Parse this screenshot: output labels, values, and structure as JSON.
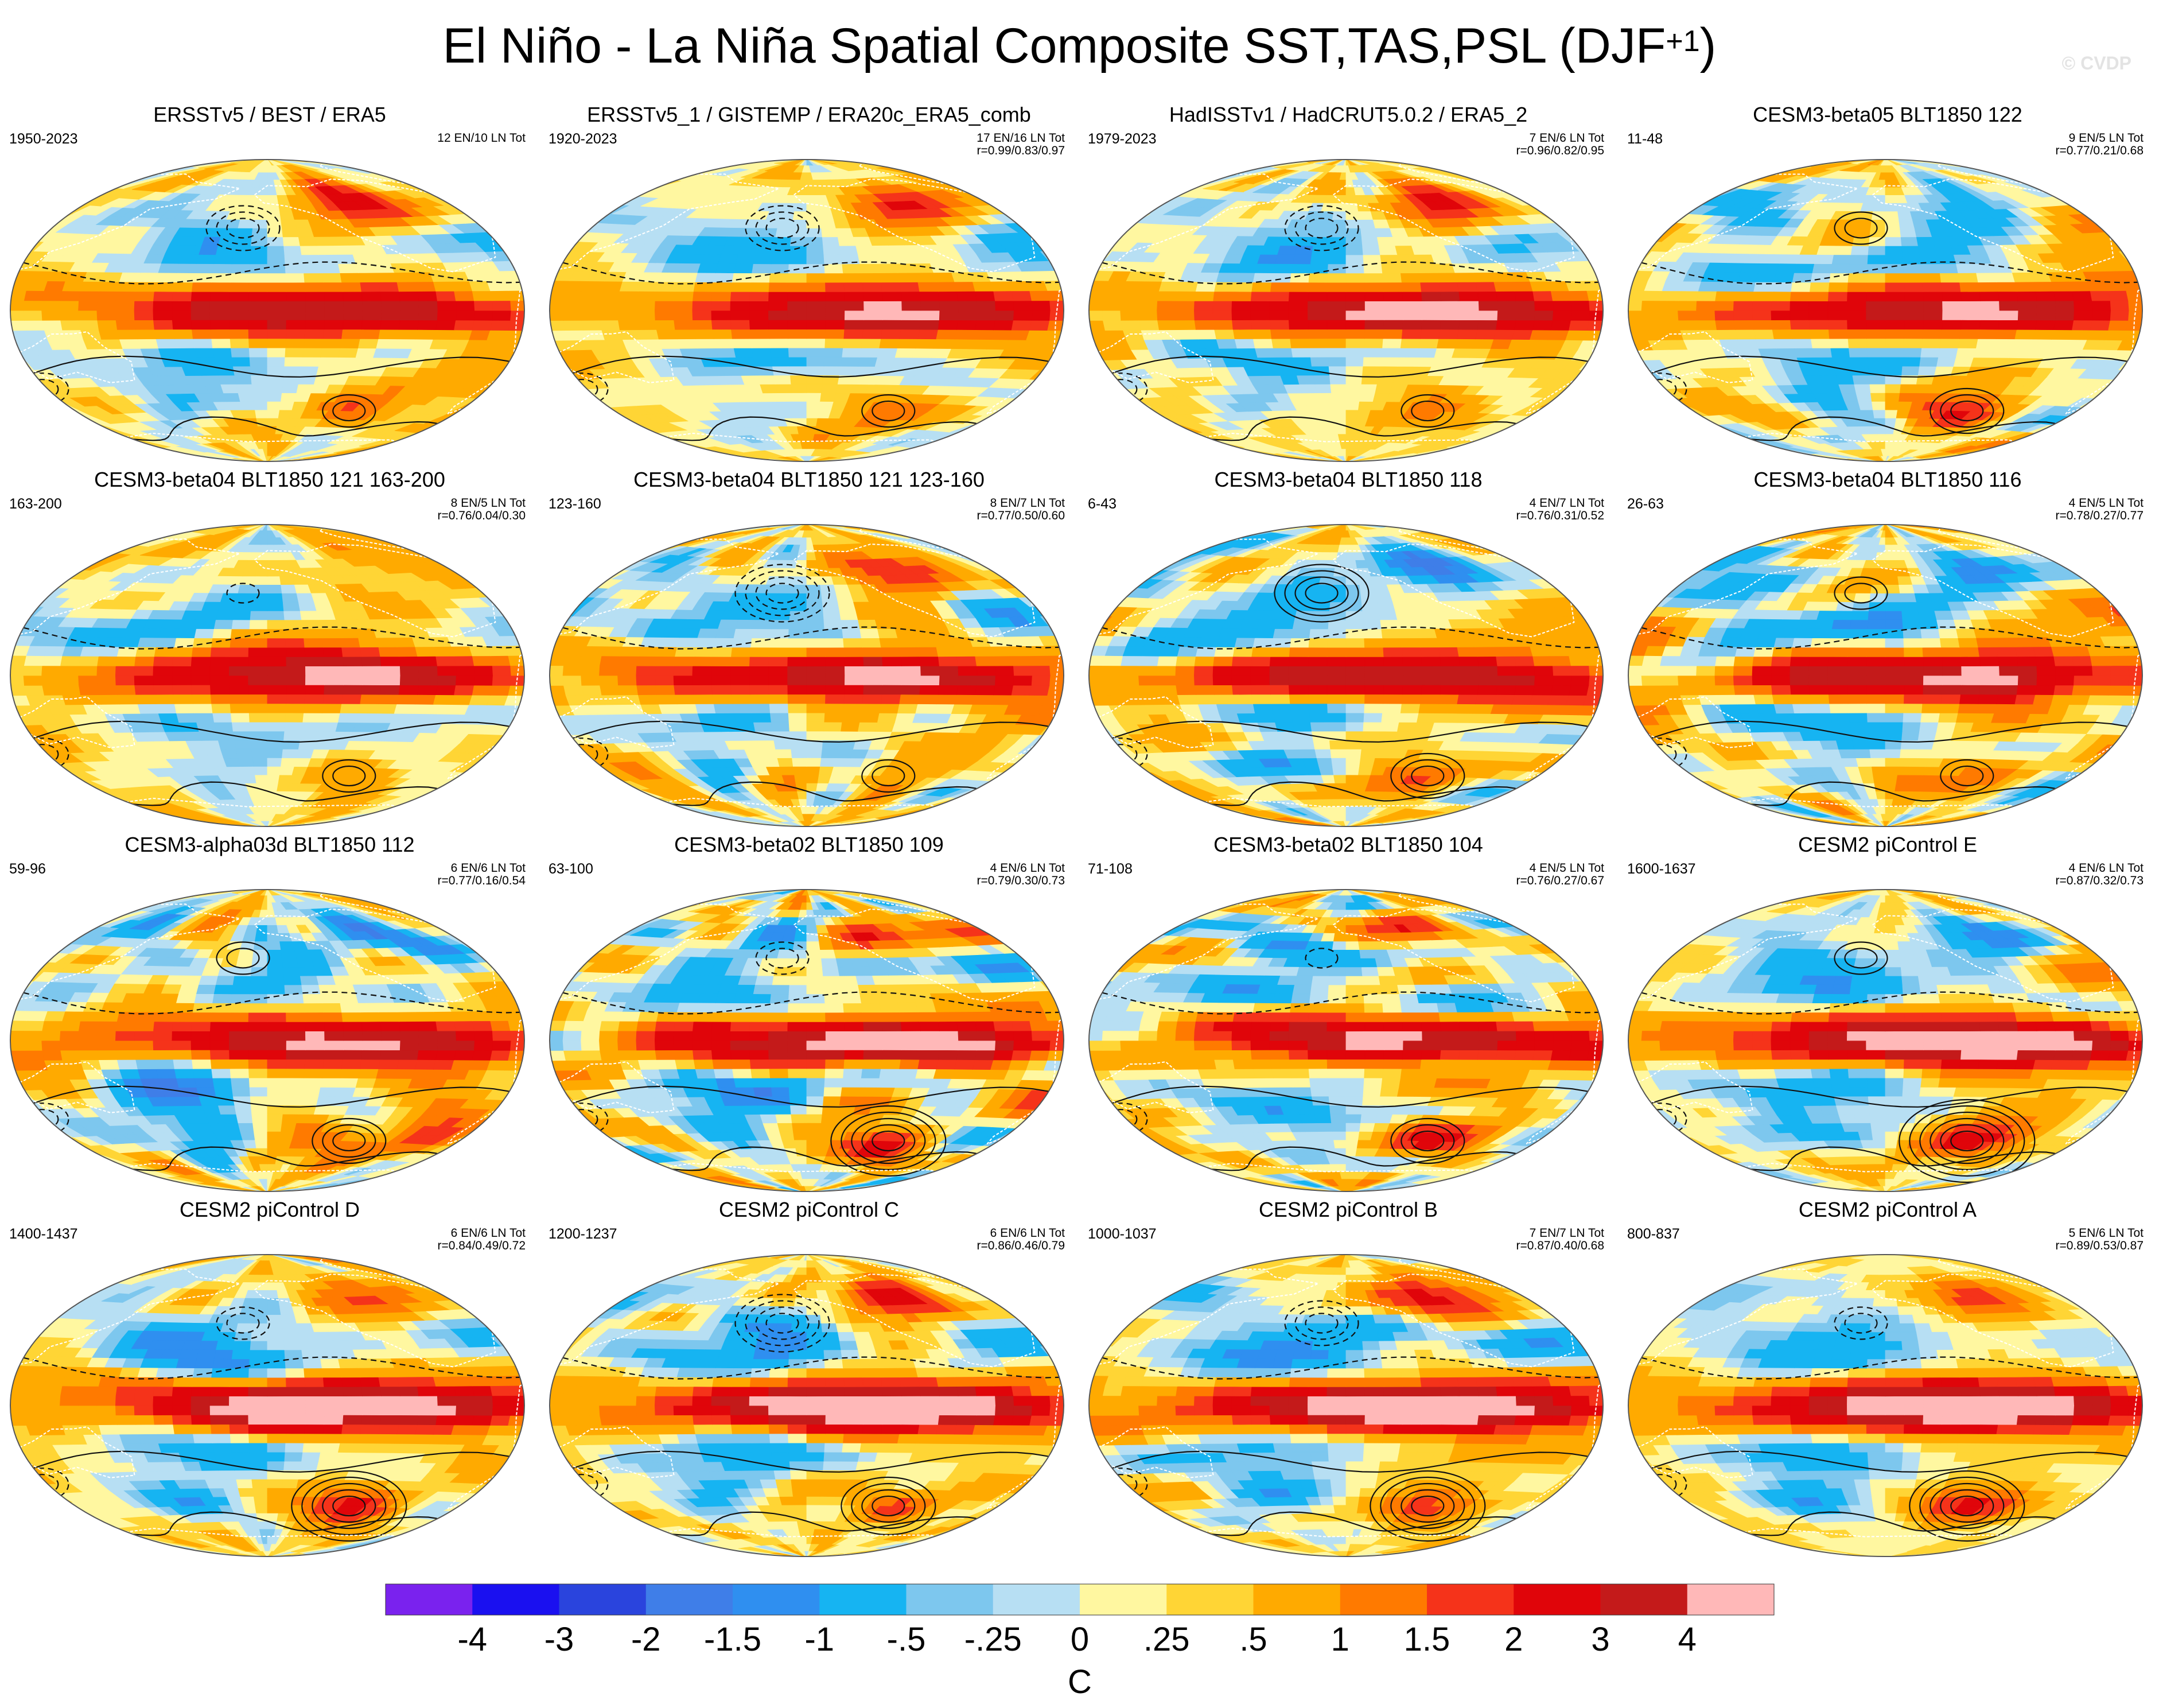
{
  "title": {
    "main": "El Niño - La Niña Spatial Composite SST,TAS,PSL (DJF",
    "sup": "+1",
    "close": ")"
  },
  "watermark": "© CVDP",
  "colors": {
    "land_outline": "#ffffff",
    "map_border": "#555555",
    "psl_contour": "#111111"
  },
  "panels": [
    {
      "id": "ersst",
      "title": "ERSSTv5 / BEST / ERA5",
      "years": "1950-2023",
      "stat1": "12 EN/10 LN Tot",
      "stat2": "",
      "pattern": {
        "nino": 1.0,
        "pna": 0.8,
        "atl": 0.2,
        "sh": 0.6,
        "noise": 0.8,
        "seed": 1
      }
    },
    {
      "id": "ersst1",
      "title": "ERSSTv5_1 / GISTEMP / ERA20c_ERA5_comb",
      "years": "1920-2023",
      "stat1": "17 EN/16 LN Tot",
      "stat2": "r=0.99/0.83/0.97",
      "pattern": {
        "nino": 1.0,
        "pna": 0.8,
        "atl": 0.3,
        "sh": 0.5,
        "noise": 0.6,
        "seed": 2
      }
    },
    {
      "id": "hadisst",
      "title": "HadISSTv1 / HadCRUT5.0.2 / ERA5_2",
      "years": "1979-2023",
      "stat1": "7 EN/6 LN Tot",
      "stat2": "r=0.96/0.82/0.95",
      "pattern": {
        "nino": 1.1,
        "pna": 0.8,
        "atl": 0.3,
        "sh": 0.6,
        "noise": 0.7,
        "seed": 3
      }
    },
    {
      "id": "b05-122",
      "title": "CESM3-beta05 BLT1850 122",
      "years": "11-48",
      "stat1": "9 EN/5 LN Tot",
      "stat2": "r=0.77/0.21/0.68",
      "pattern": {
        "nino": 0.9,
        "pna": -0.6,
        "atl": 0.5,
        "sh": 0.8,
        "noise": 1.2,
        "seed": 4
      }
    },
    {
      "id": "b04-121a",
      "title": "CESM3-beta04 BLT1850 121 163-200",
      "years": "163-200",
      "stat1": "8 EN/5 LN Tot",
      "stat2": "r=0.76/0.04/0.30",
      "pattern": {
        "nino": 1.0,
        "pna": 0.2,
        "atl": 0.1,
        "sh": 0.5,
        "noise": 1.1,
        "seed": 5
      }
    },
    {
      "id": "b04-121b",
      "title": "CESM3-beta04 BLT1850 121 123-160",
      "years": "123-160",
      "stat1": "8 EN/7 LN Tot",
      "stat2": "r=0.77/0.50/0.60",
      "pattern": {
        "nino": 1.0,
        "pna": 0.9,
        "atl": 0.4,
        "sh": 0.6,
        "noise": 1.1,
        "seed": 6
      }
    },
    {
      "id": "b04-118",
      "title": "CESM3-beta04 BLT1850 118",
      "years": "6-43",
      "stat1": "4 EN/7 LN Tot",
      "stat2": "r=0.76/0.31/0.52",
      "pattern": {
        "nino": 1.0,
        "pna": -0.9,
        "atl": 0.5,
        "sh": 0.7,
        "noise": 1.2,
        "seed": 7
      }
    },
    {
      "id": "b04-116",
      "title": "CESM3-beta04 BLT1850 116",
      "years": "26-63",
      "stat1": "4 EN/5 LN Tot",
      "stat2": "r=0.78/0.27/0.77",
      "pattern": {
        "nino": 1.0,
        "pna": -0.6,
        "atl": 0.6,
        "sh": 0.6,
        "noise": 1.2,
        "seed": 8
      }
    },
    {
      "id": "a03d-112",
      "title": "CESM3-alpha03d BLT1850 112",
      "years": "59-96",
      "stat1": "6 EN/6 LN Tot",
      "stat2": "r=0.77/0.16/0.54",
      "pattern": {
        "nino": 1.0,
        "pna": -0.5,
        "atl": 0.7,
        "sh": 0.7,
        "noise": 1.2,
        "seed": 9
      }
    },
    {
      "id": "b02-109",
      "title": "CESM3-beta02 BLT1850 109",
      "years": "63-100",
      "stat1": "4 EN/6 LN Tot",
      "stat2": "r=0.79/0.30/0.73",
      "pattern": {
        "nino": 1.1,
        "pna": 0.5,
        "atl": 0.5,
        "sh": 1.2,
        "noise": 1.2,
        "seed": 10
      }
    },
    {
      "id": "b02-104",
      "title": "CESM3-beta02 BLT1850 104",
      "years": "71-108",
      "stat1": "4 EN/5 LN Tot",
      "stat2": "r=0.76/0.27/0.67",
      "pattern": {
        "nino": 1.0,
        "pna": 0.3,
        "atl": 0.5,
        "sh": 0.8,
        "noise": 1.2,
        "seed": 11
      }
    },
    {
      "id": "pic-e",
      "title": "CESM2 piControl E",
      "years": "1600-1637",
      "stat1": "4 EN/6 LN Tot",
      "stat2": "r=0.87/0.32/0.73",
      "pattern": {
        "nino": 1.3,
        "pna": -0.6,
        "atl": 0.4,
        "sh": 1.4,
        "noise": 1.0,
        "seed": 12
      }
    },
    {
      "id": "pic-d",
      "title": "CESM2 piControl D",
      "years": "1400-1437",
      "stat1": "6 EN/6 LN Tot",
      "stat2": "r=0.84/0.49/0.72",
      "pattern": {
        "nino": 1.35,
        "pna": 0.6,
        "atl": 0.4,
        "sh": 1.2,
        "noise": 0.9,
        "seed": 13
      }
    },
    {
      "id": "pic-c",
      "title": "CESM2 piControl C",
      "years": "1200-1237",
      "stat1": "6 EN/6 LN Tot",
      "stat2": "r=0.86/0.46/0.79",
      "pattern": {
        "nino": 1.35,
        "pna": 0.9,
        "atl": 0.4,
        "sh": 0.9,
        "noise": 0.9,
        "seed": 14
      }
    },
    {
      "id": "pic-b",
      "title": "CESM2 piControl B",
      "years": "1000-1037",
      "stat1": "7 EN/7 LN Tot",
      "stat2": "r=0.87/0.40/0.68",
      "pattern": {
        "nino": 1.35,
        "pna": 0.8,
        "atl": 0.5,
        "sh": 1.2,
        "noise": 0.9,
        "seed": 15
      }
    },
    {
      "id": "pic-a",
      "title": "CESM2 piControl A",
      "years": "800-837",
      "stat1": "5 EN/6 LN Tot",
      "stat2": "r=0.89/0.53/0.87",
      "pattern": {
        "nino": 1.35,
        "pna": 0.6,
        "atl": 0.5,
        "sh": 1.3,
        "noise": 0.9,
        "seed": 16
      }
    }
  ],
  "colorbar": {
    "colors": [
      "#7a22ee",
      "#1a10f0",
      "#2a44dd",
      "#3f7ee8",
      "#2f8ff0",
      "#16b4f2",
      "#7dc7ee",
      "#b7dff3",
      "#fff7a0",
      "#ffd535",
      "#ffaa00",
      "#ff7a00",
      "#f5331a",
      "#e0050a",
      "#c41a1a",
      "#ffb8b8"
    ],
    "ticks": [
      "-4",
      "-3",
      "-2",
      "-1.5",
      "-1",
      "-.5",
      "-.25",
      "0",
      ".25",
      ".5",
      "1",
      "1.5",
      "2",
      "3",
      "4"
    ],
    "levels": [
      -4,
      -3,
      -2,
      -1.5,
      -1,
      -0.5,
      -0.25,
      0,
      0.25,
      0.5,
      1,
      1.5,
      2,
      3,
      4
    ],
    "unit": "C"
  }
}
